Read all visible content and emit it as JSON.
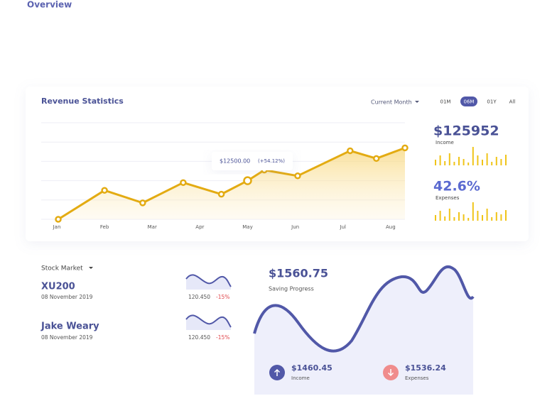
{
  "header": {
    "title": "Overview"
  },
  "chart_data": {
    "type": "line",
    "title": "Revenue Statistics",
    "x": [
      0.03,
      1.0,
      1.8,
      2.65,
      3.45,
      4.0,
      4.35,
      5.05,
      6.15,
      6.7,
      7.3
    ],
    "series": [
      {
        "color": "#e3ab12",
        "values": [
          0,
          1.5,
          0.85,
          1.9,
          1.3,
          2.0,
          2.55,
          2.25,
          3.55,
          3.15,
          3.7
        ]
      }
    ],
    "xlim": [
      0,
      7.3
    ],
    "xticks": [
      {
        "value": 0,
        "label": "Jan"
      },
      {
        "value": 1,
        "label": "Feb"
      },
      {
        "value": 2,
        "label": "Mar"
      },
      {
        "value": 3,
        "label": "Apr"
      },
      {
        "value": 4,
        "label": "May"
      },
      {
        "value": 5,
        "label": "Jun"
      },
      {
        "value": 6,
        "label": "Jul"
      },
      {
        "value": 7,
        "label": "Aug"
      }
    ],
    "ylim": [
      0,
      5
    ],
    "yticks": [
      0,
      1,
      2,
      3,
      4,
      5
    ],
    "grid": true,
    "tooltip": {
      "value": "$12500.00",
      "change": "(+54.12%)"
    }
  },
  "revenue_controls": {
    "period": "Current Month",
    "tabs": [
      "01M",
      "06M",
      "01Y",
      "All"
    ],
    "active_tab": 1
  },
  "revenue_stats": [
    {
      "value": "$125952",
      "label": "Income"
    },
    {
      "value": "42.6%",
      "label": "Expenses"
    }
  ],
  "stock_market": {
    "title": "Stock Market",
    "items": [
      {
        "name": "XU200",
        "date": "08 November 2019",
        "price": "120.450",
        "change": "-15%"
      },
      {
        "name": "Jake Weary",
        "date": "08 November 2019",
        "price": "120.450",
        "change": "-15%"
      }
    ]
  },
  "saving": {
    "amount": "$1560.75",
    "label": "Saving Progress",
    "income": {
      "value": "$1460.45",
      "label": "Income"
    },
    "expenses": {
      "value": "$1536.24",
      "label": "Expenses"
    }
  }
}
